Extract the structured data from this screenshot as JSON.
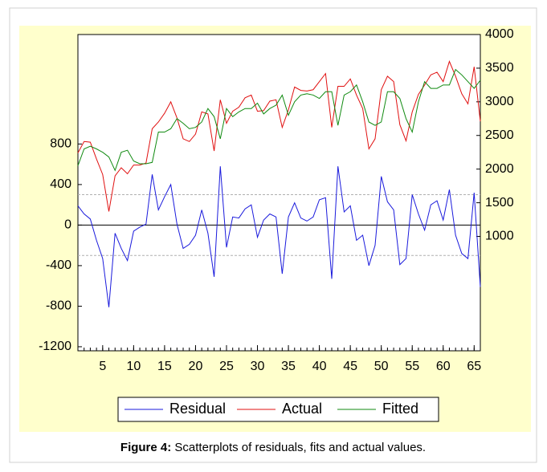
{
  "chart_data": {
    "type": "line",
    "caption_label": "Figure 4:",
    "caption": "Scatterplots of residuals, fits and actual values.",
    "x": [
      1,
      2,
      3,
      4,
      5,
      6,
      7,
      8,
      9,
      10,
      11,
      12,
      13,
      14,
      15,
      16,
      17,
      18,
      19,
      20,
      21,
      22,
      23,
      24,
      25,
      26,
      27,
      28,
      29,
      30,
      31,
      32,
      33,
      34,
      35,
      36,
      37,
      38,
      39,
      40,
      41,
      42,
      43,
      44,
      45,
      46,
      47,
      48,
      49,
      50,
      51,
      52,
      53,
      54,
      55,
      56,
      57,
      58,
      59,
      60,
      61,
      62,
      63,
      64,
      65,
      66
    ],
    "xlim": [
      1,
      66
    ],
    "xticks": [
      5,
      10,
      15,
      20,
      25,
      30,
      35,
      40,
      45,
      50,
      55,
      60,
      65
    ],
    "ylim": [
      -1240,
      1880
    ],
    "yticks": [
      -1200,
      -800,
      -400,
      0,
      400,
      800
    ],
    "y2lim": [
      -700,
      4000
    ],
    "y2ticks": [
      1000,
      1500,
      2000,
      2500,
      3000,
      3500,
      4000
    ],
    "band_lines": [
      -300,
      300
    ],
    "series": [
      {
        "name": "Residual",
        "color": "#1a1adc",
        "axis": "y",
        "values": [
          190,
          110,
          60,
          -150,
          -330,
          -810,
          -80,
          -230,
          -350,
          -60,
          -20,
          10,
          500,
          150,
          280,
          400,
          10,
          -230,
          -190,
          -100,
          150,
          -80,
          -510,
          580,
          -220,
          80,
          70,
          160,
          200,
          -120,
          50,
          110,
          80,
          -480,
          80,
          220,
          70,
          40,
          80,
          250,
          270,
          -530,
          580,
          130,
          190,
          -150,
          -100,
          -400,
          -200,
          480,
          230,
          150,
          -390,
          -330,
          300,
          110,
          -50,
          200,
          240,
          50,
          350,
          -100,
          -280,
          -330,
          320,
          -610
        ]
      },
      {
        "name": "Actual",
        "color": "#e01010",
        "axis": "y2",
        "values": [
          2240,
          2410,
          2400,
          2150,
          1920,
          1370,
          1900,
          2020,
          1930,
          2060,
          2060,
          2090,
          2600,
          2700,
          2830,
          3000,
          2760,
          2450,
          2410,
          2520,
          2850,
          2820,
          2270,
          3030,
          2680,
          2860,
          2920,
          3060,
          3100,
          2860,
          2870,
          3010,
          3030,
          2620,
          2880,
          3220,
          3170,
          3160,
          3180,
          3300,
          3420,
          2620,
          3230,
          3230,
          3340,
          3100,
          2900,
          2300,
          2450,
          3180,
          3380,
          3300,
          2660,
          2420,
          2850,
          3110,
          3250,
          3400,
          3440,
          3300,
          3600,
          3380,
          3120,
          2970,
          3520,
          2710
        ]
      },
      {
        "name": "Fitted",
        "color": "#108a10",
        "axis": "y2",
        "values": [
          2050,
          2300,
          2340,
          2300,
          2250,
          2180,
          1980,
          2250,
          2280,
          2120,
          2080,
          2080,
          2100,
          2550,
          2550,
          2600,
          2750,
          2680,
          2600,
          2620,
          2700,
          2900,
          2780,
          2450,
          2900,
          2780,
          2850,
          2900,
          2900,
          2980,
          2820,
          2900,
          2950,
          3100,
          2800,
          3000,
          3100,
          3120,
          3100,
          3050,
          3150,
          3150,
          2650,
          3100,
          3150,
          3250,
          3000,
          2700,
          2650,
          2700,
          3150,
          3150,
          3050,
          2750,
          2550,
          3000,
          3300,
          3200,
          3200,
          3250,
          3250,
          3480,
          3400,
          3300,
          3200,
          3320
        ]
      }
    ]
  }
}
